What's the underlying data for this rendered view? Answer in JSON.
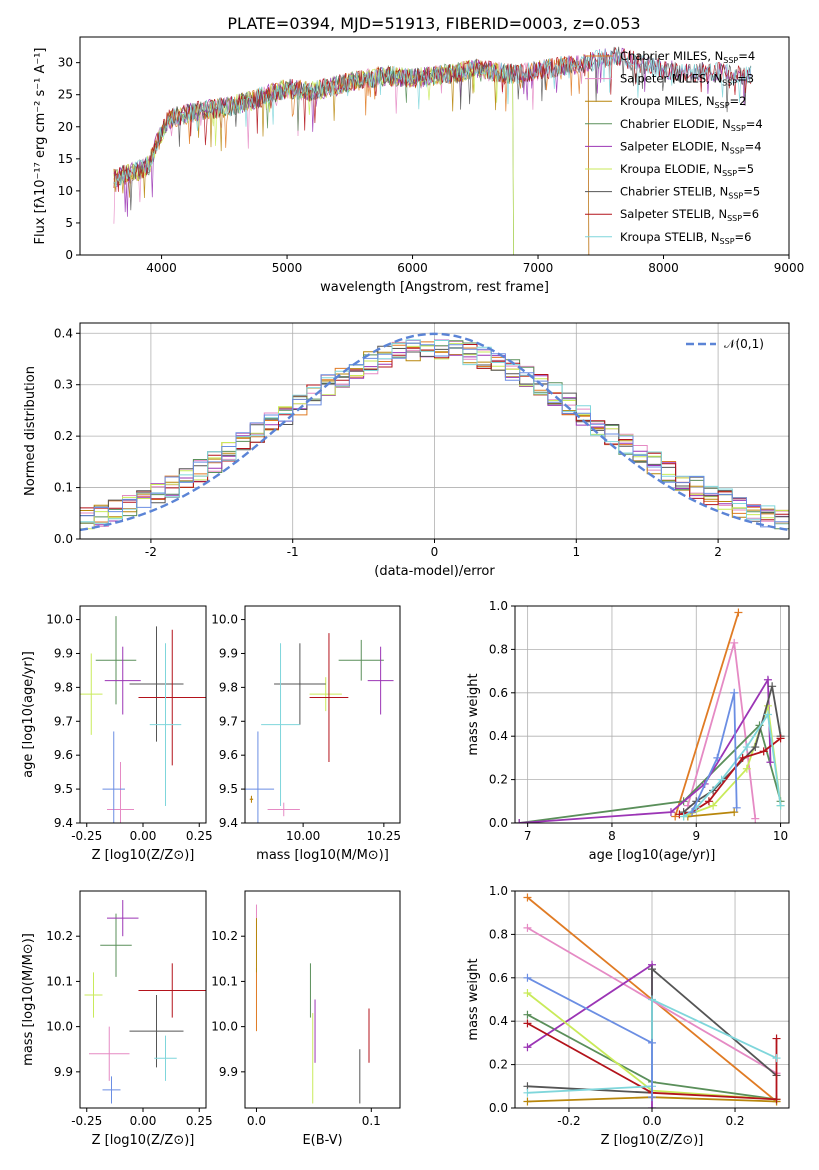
{
  "title": "PLATE=0394, MJD=51913, FIBERID=0003, z=0.053",
  "colors": [
    "#e07b24",
    "#e58ac4",
    "#b8860b",
    "#5a8f5a",
    "#9b35b5",
    "#c9ea5a",
    "#555555",
    "#b3131b",
    "#7fd6db",
    "#6b8ee3"
  ],
  "legend_entries": [
    {
      "name": "Chabrier MILES",
      "nssp": "4"
    },
    {
      "name": "Salpeter MILES",
      "nssp": "3"
    },
    {
      "name": "Kroupa MILES",
      "nssp": "2"
    },
    {
      "name": "Chabrier ELODIE",
      "nssp": "4"
    },
    {
      "name": "Salpeter ELODIE",
      "nssp": "4"
    },
    {
      "name": "Kroupa ELODIE",
      "nssp": "5"
    },
    {
      "name": "Chabrier STELIB",
      "nssp": "5"
    },
    {
      "name": "Salpeter STELIB",
      "nssp": "6"
    },
    {
      "name": "Kroupa STELIB",
      "nssp": "6"
    }
  ],
  "chart_data": [
    {
      "type": "line",
      "xlabel": "wavelength [Angstrom, rest frame]",
      "ylabel": "Flux [fλ10⁻¹⁷ erg cm⁻² s⁻¹ A⁻¹]",
      "xlim": [
        3350,
        9000
      ],
      "ylim": [
        0,
        34
      ],
      "xticks": [
        4000,
        5000,
        6000,
        7000,
        8000,
        9000
      ],
      "yticks": [
        0,
        5,
        10,
        15,
        20,
        25,
        30
      ],
      "legend_position": "upper-right",
      "spectrum_profile": [
        [
          3620,
          12
        ],
        [
          3700,
          12.5
        ],
        [
          3800,
          13
        ],
        [
          3900,
          14
        ],
        [
          3950,
          17
        ],
        [
          4000,
          19
        ],
        [
          4050,
          21
        ],
        [
          4100,
          21.5
        ],
        [
          4300,
          22.5
        ],
        [
          4500,
          23
        ],
        [
          4700,
          24
        ],
        [
          5000,
          26
        ],
        [
          5200,
          25.5
        ],
        [
          5500,
          27
        ],
        [
          5800,
          28
        ],
        [
          6000,
          27.5
        ],
        [
          6300,
          28.3
        ],
        [
          6500,
          29
        ],
        [
          6800,
          28.2
        ],
        [
          7000,
          28.8
        ],
        [
          7200,
          29.5
        ],
        [
          7400,
          30
        ],
        [
          7600,
          31.2
        ],
        [
          7800,
          30
        ],
        [
          8000,
          29
        ],
        [
          8200,
          28.3
        ],
        [
          8400,
          28.6
        ],
        [
          8600,
          28
        ],
        [
          8700,
          28
        ]
      ],
      "model_cutoffs": [
        {
          "series": "Chabrier MILES",
          "x": 7400
        },
        {
          "series": "Salpeter MILES",
          "x": 7400
        },
        {
          "series": "Kroupa MILES",
          "x": 7400
        },
        {
          "series": "Kroupa ELODIE",
          "x": 6800
        },
        {
          "series": "Chabrier ELODIE",
          "x": 6800
        }
      ]
    },
    {
      "type": "line",
      "xlabel": "(data-model)/error",
      "ylabel": "Normed distribution",
      "xlim": [
        -2.5,
        2.5
      ],
      "ylim": [
        0,
        0.42
      ],
      "xticks": [
        -2,
        -1,
        0,
        1,
        2
      ],
      "yticks": [
        0.0,
        0.1,
        0.2,
        0.3,
        0.4
      ],
      "grid": true,
      "reference_curve": {
        "name": "𝒩(0,1)",
        "mean": 0,
        "sigma": 1
      },
      "legend_position": "upper-right"
    },
    {
      "type": "scatter",
      "xlabel": "Z [log10(Z/Z⊙)]",
      "ylabel": "age  [log10(age/yr)]",
      "xlim": [
        -0.28,
        0.28
      ],
      "ylim": [
        9.4,
        10.04
      ],
      "xticks": [
        -0.25,
        0.0,
        0.25
      ],
      "yticks": [
        9.4,
        9.5,
        9.6,
        9.7,
        9.8,
        9.9,
        10.0
      ],
      "points": [
        {
          "x": -0.3,
          "y": 9.47,
          "xerr": 0.01,
          "yerr": 0.01
        },
        {
          "x": -0.1,
          "y": 9.44,
          "xerr": 0.06,
          "yerr": 0.14
        },
        {
          "x": -0.3,
          "y": 9.47,
          "xerr": 0.01,
          "yerr": 0.01
        },
        {
          "x": -0.12,
          "y": 9.88,
          "xerr": 0.09,
          "yerr": 0.13
        },
        {
          "x": -0.09,
          "y": 9.82,
          "xerr": 0.08,
          "yerr": 0.1
        },
        {
          "x": -0.23,
          "y": 9.78,
          "xerr": 0.05,
          "yerr": 0.12
        },
        {
          "x": 0.06,
          "y": 9.81,
          "xerr": 0.12,
          "yerr": 0.17
        },
        {
          "x": 0.13,
          "y": 9.77,
          "xerr": 0.15,
          "yerr": 0.2
        },
        {
          "x": 0.1,
          "y": 9.69,
          "xerr": 0.07,
          "yerr": 0.24
        },
        {
          "x": -0.13,
          "y": 9.5,
          "xerr": 0.05,
          "yerr": 0.17
        }
      ]
    },
    {
      "type": "scatter",
      "xlabel": "mass [log10(M/M⊙)]",
      "ylabel": "",
      "xlim": [
        9.82,
        10.3
      ],
      "ylim": [
        9.4,
        10.04
      ],
      "xticks": [
        10.0,
        10.25
      ],
      "xtick_labels": [
        "10.00",
        "10.25"
      ],
      "yticks": [
        9.4,
        9.5,
        9.6,
        9.7,
        9.8,
        9.9,
        10.0
      ],
      "points": [
        {
          "x": 9.84,
          "y": 9.47,
          "xerr": 0.005,
          "yerr": 0.01
        },
        {
          "x": 9.94,
          "y": 9.44,
          "xerr": 0.05,
          "yerr": 0.02
        },
        {
          "x": 9.84,
          "y": 9.47,
          "xerr": 0.005,
          "yerr": 0.01
        },
        {
          "x": 10.18,
          "y": 9.88,
          "xerr": 0.07,
          "yerr": 0.06
        },
        {
          "x": 10.24,
          "y": 9.82,
          "xerr": 0.04,
          "yerr": 0.1
        },
        {
          "x": 10.07,
          "y": 9.78,
          "xerr": 0.05,
          "yerr": 0.05
        },
        {
          "x": 9.99,
          "y": 9.81,
          "xerr": 0.08,
          "yerr": 0.12
        },
        {
          "x": 10.08,
          "y": 9.77,
          "xerr": 0.06,
          "yerr": 0.19
        },
        {
          "x": 9.93,
          "y": 9.69,
          "xerr": 0.06,
          "yerr": 0.24
        },
        {
          "x": 9.86,
          "y": 9.5,
          "xerr": 0.05,
          "yerr": 0.17
        }
      ]
    },
    {
      "type": "line",
      "xlabel": "age  [log10(age/yr)]",
      "ylabel": "mass weight",
      "xlim": [
        6.85,
        10.1
      ],
      "ylim": [
        0,
        1
      ],
      "xticks": [
        7,
        8,
        9,
        10
      ],
      "yticks": [
        0.0,
        0.2,
        0.4,
        0.6,
        0.8,
        1.0
      ],
      "grid": true,
      "series": [
        {
          "x": [
            8.75,
            9.5
          ],
          "y": [
            0.03,
            0.97
          ]
        },
        {
          "x": [
            8.9,
            9.45,
            9.7
          ],
          "y": [
            0.08,
            0.83,
            0.02
          ]
        },
        {
          "x": [
            8.9,
            9.45
          ],
          "y": [
            0.03,
            0.05
          ]
        },
        {
          "x": [
            6.9,
            8.85,
            9.75,
            10.0
          ],
          "y": [
            0.0,
            0.1,
            0.45,
            0.1
          ]
        },
        {
          "x": [
            6.9,
            8.7,
            9.1,
            9.85,
            9.88
          ],
          "y": [
            0.0,
            0.05,
            0.18,
            0.66,
            0.28
          ]
        },
        {
          "x": [
            8.85,
            9.2,
            9.6,
            9.85,
            10.0
          ],
          "y": [
            0.03,
            0.08,
            0.25,
            0.54,
            0.08
          ]
        },
        {
          "x": [
            8.85,
            9.0,
            9.2,
            9.7,
            9.9,
            10.0
          ],
          "y": [
            0.05,
            0.1,
            0.15,
            0.35,
            0.63,
            0.4
          ]
        },
        {
          "x": [
            8.8,
            8.95,
            9.15,
            9.55,
            9.8,
            10.0
          ],
          "y": [
            0.04,
            0.05,
            0.1,
            0.3,
            0.33,
            0.39
          ]
        },
        {
          "x": [
            8.85,
            9.0,
            9.3,
            9.6,
            9.85,
            10.0
          ],
          "y": [
            0.03,
            0.07,
            0.2,
            0.35,
            0.5,
            0.08
          ]
        },
        {
          "x": [
            8.95,
            9.25,
            9.45,
            9.48
          ],
          "y": [
            0.05,
            0.3,
            0.6,
            0.07
          ]
        }
      ]
    },
    {
      "type": "scatter",
      "xlabel": "Z [log10(Z/Z⊙)]",
      "ylabel": "mass [log10(M/M⊙)]",
      "xlim": [
        -0.28,
        0.28
      ],
      "ylim": [
        9.82,
        10.3
      ],
      "xticks": [
        -0.25,
        0.0,
        0.25
      ],
      "yticks": [
        9.9,
        10.0,
        10.1,
        10.2
      ],
      "points": [
        {
          "x": -0.3,
          "y": 9.84,
          "xerr": 0.01,
          "yerr": 0.005
        },
        {
          "x": -0.15,
          "y": 9.94,
          "xerr": 0.09,
          "yerr": 0.06
        },
        {
          "x": -0.3,
          "y": 9.84,
          "xerr": 0.01,
          "yerr": 0.005
        },
        {
          "x": -0.12,
          "y": 10.18,
          "xerr": 0.07,
          "yerr": 0.07
        },
        {
          "x": -0.09,
          "y": 10.24,
          "xerr": 0.07,
          "yerr": 0.04
        },
        {
          "x": -0.22,
          "y": 10.07,
          "xerr": 0.04,
          "yerr": 0.05
        },
        {
          "x": 0.06,
          "y": 9.99,
          "xerr": 0.12,
          "yerr": 0.08
        },
        {
          "x": 0.13,
          "y": 10.08,
          "xerr": 0.15,
          "yerr": 0.06
        },
        {
          "x": 0.1,
          "y": 9.93,
          "xerr": 0.05,
          "yerr": 0.05
        },
        {
          "x": -0.14,
          "y": 9.86,
          "xerr": 0.04,
          "yerr": 0.03
        }
      ]
    },
    {
      "type": "scatter",
      "xlabel": "E(B-V)",
      "ylabel": "",
      "xlim": [
        -0.01,
        0.125
      ],
      "ylim": [
        9.82,
        10.3
      ],
      "xticks": [
        0.0,
        0.1
      ],
      "yticks": [
        9.9,
        10.0,
        10.1,
        10.2
      ],
      "points": [
        {
          "x": 0.0,
          "y": 10.06,
          "yerr": 0.07
        },
        {
          "x": 0.0,
          "y": 10.22,
          "yerr": 0.05
        },
        {
          "x": 0.0,
          "y": 10.18,
          "yerr": 0.06
        },
        {
          "x": 0.047,
          "y": 10.08,
          "yerr": 0.06
        },
        {
          "x": 0.051,
          "y": 9.99,
          "yerr": 0.07
        },
        {
          "x": 0.049,
          "y": 9.93,
          "yerr": 0.1
        },
        {
          "x": 0.09,
          "y": 9.89,
          "yerr": 0.06
        },
        {
          "x": 0.098,
          "y": 9.98,
          "yerr": 0.06
        }
      ]
    },
    {
      "type": "line",
      "xlabel": "Z [log10(Z/Z⊙)]",
      "ylabel": "mass weight",
      "xlim": [
        -0.33,
        0.33
      ],
      "ylim": [
        0,
        1
      ],
      "xticks": [
        -0.2,
        0.0,
        0.2
      ],
      "yticks": [
        0.0,
        0.2,
        0.4,
        0.6,
        0.8,
        1.0
      ],
      "grid": true,
      "series": [
        {
          "x": [
            -0.3,
            0.3
          ],
          "y": [
            0.97,
            0.03
          ]
        },
        {
          "x": [
            -0.3,
            0.3
          ],
          "y": [
            0.83,
            0.16
          ]
        },
        {
          "x": [
            -0.3,
            0.0,
            0.3
          ],
          "y": [
            0.03,
            0.05,
            0.03
          ]
        },
        {
          "x": [
            -0.3,
            0.0,
            0.3
          ],
          "y": [
            0.43,
            0.12,
            0.04
          ]
        },
        {
          "x": [
            -0.3,
            0.0,
            0.0
          ],
          "y": [
            0.28,
            0.66,
            0.0
          ]
        },
        {
          "x": [
            -0.3,
            0.0,
            0.3
          ],
          "y": [
            0.53,
            0.08,
            0.04
          ]
        },
        {
          "x": [
            -0.3,
            0.0,
            0.0,
            0.3
          ],
          "y": [
            0.1,
            0.07,
            0.64,
            0.15
          ]
        },
        {
          "x": [
            -0.3,
            0.0,
            0.3,
            0.3
          ],
          "y": [
            0.39,
            0.07,
            0.04,
            0.32
          ]
        },
        {
          "x": [
            -0.3,
            0.0,
            0.0,
            0.3
          ],
          "y": [
            0.07,
            0.1,
            0.5,
            0.23
          ]
        },
        {
          "x": [
            -0.3,
            0.0,
            0.0
          ],
          "y": [
            0.6,
            0.3,
            0.05
          ]
        }
      ]
    }
  ]
}
